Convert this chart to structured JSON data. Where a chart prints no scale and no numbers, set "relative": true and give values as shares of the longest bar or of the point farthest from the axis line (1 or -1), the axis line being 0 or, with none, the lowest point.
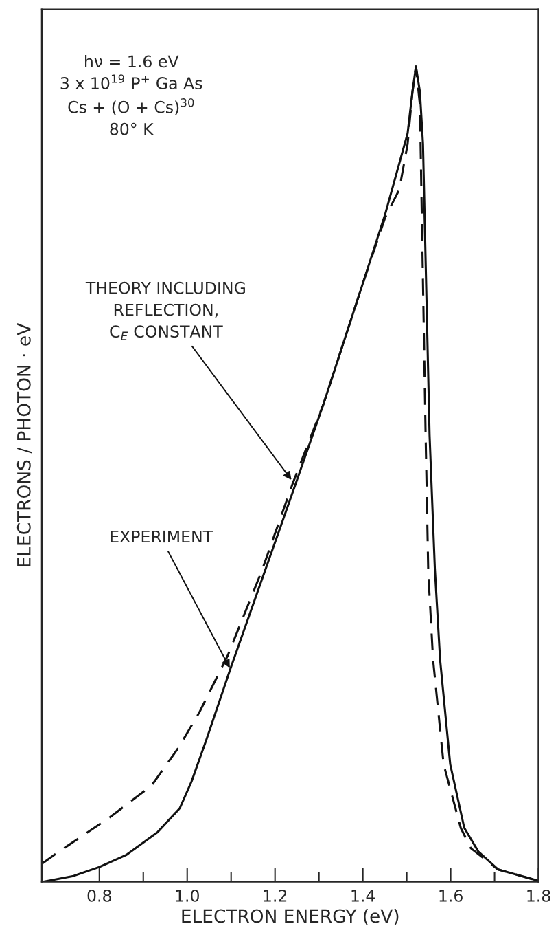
{
  "chart_data": {
    "type": "line",
    "relative": true,
    "xlabel": "ELECTRON ENERGY (eV)",
    "ylabel": "ELECTRONS / PHOTON · eV",
    "xlim": [
      0.669,
      1.8
    ],
    "xticks": [
      0.8,
      {
        "value": 0.9,
        "label": null
      },
      {
        "value": 1.0,
        "label": "1.0"
      },
      {
        "value": 1.1,
        "label": null
      },
      1.2,
      {
        "value": 1.3,
        "label": null
      },
      1.4,
      {
        "value": 1.5,
        "label": null
      },
      1.6,
      {
        "value": 1.7,
        "label": null
      },
      1.8
    ],
    "grid": false,
    "series": [
      {
        "color": "#111111",
        "line_style": "solid",
        "x": [
          0.673,
          0.741,
          0.8,
          0.862,
          0.933,
          0.983,
          1.01,
          1.043,
          1.099,
          1.247,
          1.311,
          1.397,
          1.451,
          1.502,
          1.513,
          1.521,
          1.53,
          1.537,
          1.552,
          1.564,
          1.576,
          1.599,
          1.631,
          1.663,
          1.708,
          1.8
        ],
        "values": [
          0.0,
          0.007,
          0.018,
          0.033,
          0.061,
          0.09,
          0.123,
          0.173,
          0.262,
          0.488,
          0.587,
          0.729,
          0.819,
          0.918,
          0.969,
          1.0,
          0.969,
          0.905,
          0.548,
          0.384,
          0.272,
          0.144,
          0.066,
          0.037,
          0.015,
          0.001
        ]
      },
      {
        "color": "#111111",
        "line_style": "dashed",
        "x": [
          0.669,
          0.7,
          0.824,
          0.919,
          0.981,
          1.028,
          1.092,
          1.169,
          1.24,
          1.311,
          1.397,
          1.451,
          1.483,
          1.502,
          1.513,
          1.521,
          1.53,
          1.543,
          1.549,
          1.56,
          1.584,
          1.623,
          1.646,
          1.708,
          1.8
        ],
        "values": [
          0.022,
          0.034,
          0.079,
          0.118,
          0.165,
          0.208,
          0.277,
          0.38,
          0.488,
          0.587,
          0.729,
          0.815,
          0.849,
          0.905,
          0.969,
          1.0,
          0.953,
          0.548,
          0.38,
          0.272,
          0.144,
          0.066,
          0.041,
          0.015,
          0.001
        ]
      }
    ],
    "annotations": [
      "hν = 1.6 eV\n3 x 10$^{19}$ P$^{+}$ Ga As\nCs + (O + Cs)$^{30}$\n80° K",
      {
        "text": "THEORY INCLUDING\nREFLECTION,\nC$_{E}$ CONSTANT",
        "x": 1.24,
        "y": 0.491
      },
      {
        "text": "EXPERIMENT",
        "x": 1.099,
        "y": 0.26
      }
    ]
  }
}
